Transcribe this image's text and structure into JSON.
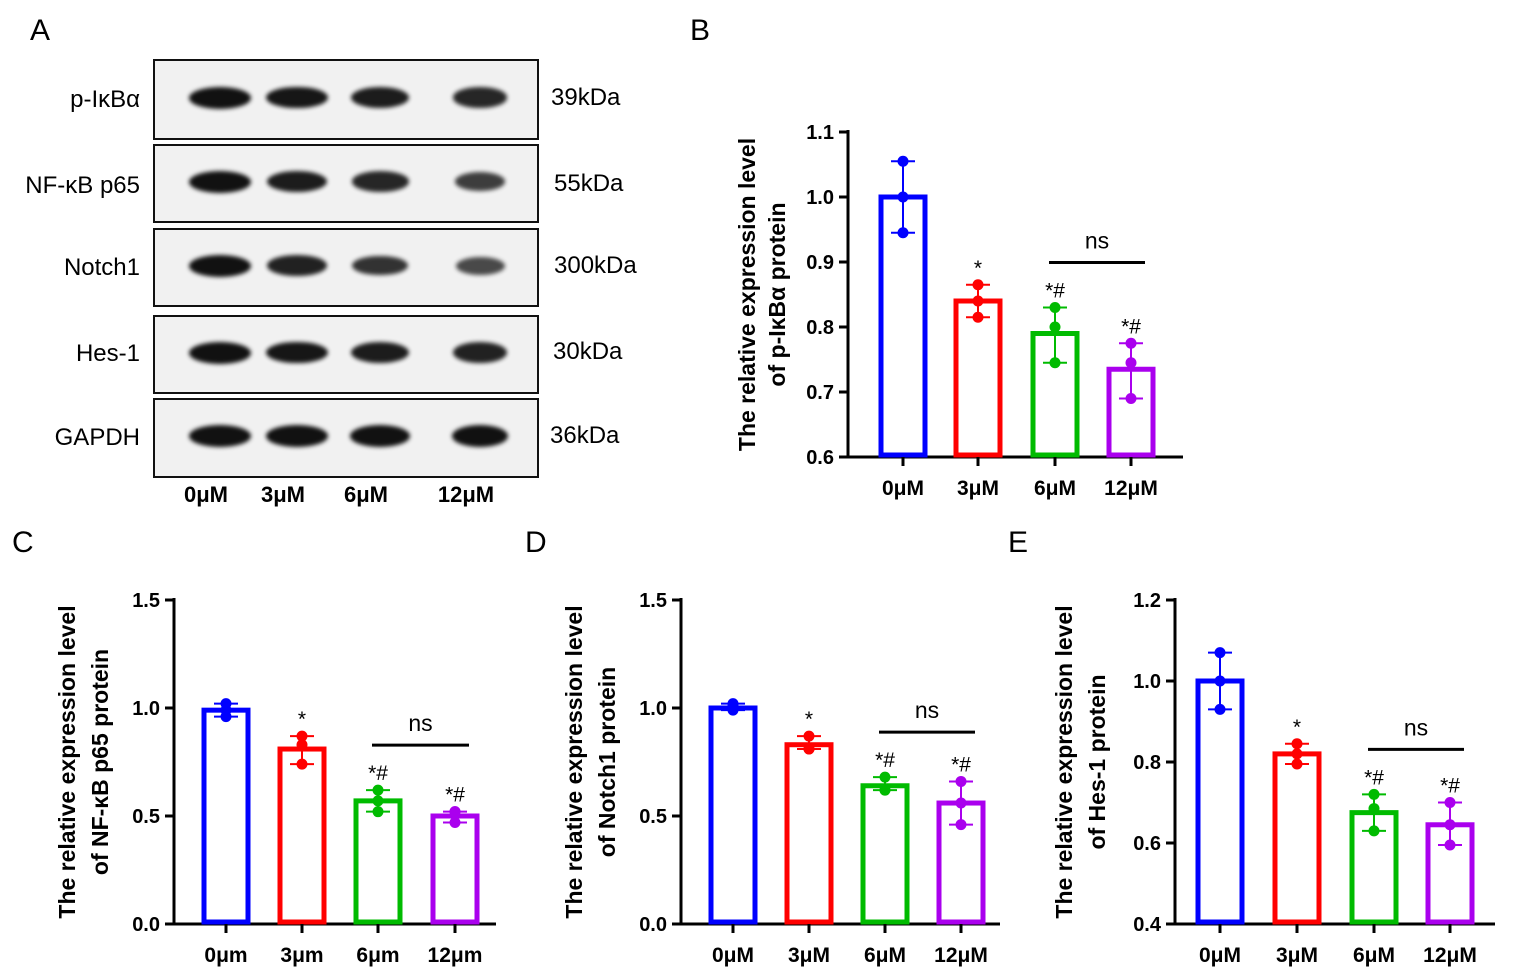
{
  "panels": {
    "a": "A",
    "b": "B",
    "c": "C",
    "d": "D",
    "e": "E"
  },
  "blot": {
    "rows": [
      {
        "protein": "p-IκBα",
        "size": "39kDa",
        "intensity": [
          1,
          0.95,
          0.9,
          0.8
        ]
      },
      {
        "protein": "NF-κB p65",
        "size": "55kDa",
        "intensity": [
          1,
          0.9,
          0.8,
          0.6
        ]
      },
      {
        "protein": "Notch1",
        "size": "300kDa",
        "intensity": [
          1,
          0.85,
          0.7,
          0.5
        ]
      },
      {
        "protein": "Hes-1",
        "size": "30kDa",
        "intensity": [
          1,
          0.95,
          0.9,
          0.85
        ]
      },
      {
        "protein": "GAPDH",
        "size": "36kDa",
        "intensity": [
          1,
          1,
          1,
          1
        ]
      }
    ],
    "lanes": [
      "0μM",
      "3μM",
      "6μM",
      "12μM"
    ]
  },
  "colors": [
    "#0000ff",
    "#ff0000",
    "#00bb00",
    "#aa00ee"
  ],
  "chart_data": [
    {
      "type": "bar",
      "id": "b",
      "ylabel": [
        "The relative expression level",
        "of p-IκBα protein"
      ],
      "categories": [
        "0μM",
        "3μM",
        "6μM",
        "12μM"
      ],
      "ylim": [
        0.6,
        1.1
      ],
      "yticks": [
        "0.6",
        "0.7",
        "0.8",
        "0.9",
        "1.0",
        "1.1"
      ],
      "values": [
        1.0,
        0.84,
        0.79,
        0.735
      ],
      "points": [
        [
          1.055,
          1.0,
          0.945
        ],
        [
          0.865,
          0.84,
          0.815
        ],
        [
          0.83,
          0.8,
          0.745
        ],
        [
          0.775,
          0.745,
          0.69
        ]
      ],
      "sig": [
        "",
        "*",
        "*#",
        "*#"
      ],
      "bracket": "ns"
    },
    {
      "type": "bar",
      "id": "c",
      "ylabel": [
        "The relative expression level",
        "of NF-κB p65 protein"
      ],
      "categories": [
        "0μm",
        "3μm",
        "6μm",
        "12μm"
      ],
      "ylim": [
        0,
        1.5
      ],
      "yticks": [
        "0.0",
        "0.5",
        "1.0",
        "1.5"
      ],
      "values": [
        0.99,
        0.81,
        0.57,
        0.5
      ],
      "points": [
        [
          1.02,
          0.99,
          0.96
        ],
        [
          0.87,
          0.83,
          0.74
        ],
        [
          0.62,
          0.57,
          0.52
        ],
        [
          0.52,
          0.52,
          0.47
        ]
      ],
      "sig": [
        "",
        "*",
        "*#",
        "*#"
      ],
      "bracket": "ns"
    },
    {
      "type": "bar",
      "id": "d",
      "ylabel": [
        "The relative expression level",
        "of Notch1 protein"
      ],
      "categories": [
        "0μM",
        "3μM",
        "6μM",
        "12μM"
      ],
      "ylim": [
        0,
        1.5
      ],
      "yticks": [
        "0.0",
        "0.5",
        "1.0",
        "1.5"
      ],
      "values": [
        1.0,
        0.83,
        0.64,
        0.56
      ],
      "points": [
        [
          0.99,
          1.01,
          1.02
        ],
        [
          0.87,
          0.81,
          0.81
        ],
        [
          0.68,
          0.62,
          0.62
        ],
        [
          0.66,
          0.56,
          0.46
        ]
      ],
      "sig": [
        "",
        "*",
        "*#",
        "*#"
      ],
      "bracket": "ns"
    },
    {
      "type": "bar",
      "id": "e",
      "ylabel": [
        "The relative expression level",
        "of Hes-1 protein"
      ],
      "categories": [
        "0μM",
        "3μM",
        "6μM",
        "12μM"
      ],
      "ylim": [
        0.4,
        1.2
      ],
      "yticks": [
        "0.4",
        "0.6",
        "0.8",
        "1.0",
        "1.2"
      ],
      "values": [
        1.0,
        0.82,
        0.675,
        0.645
      ],
      "points": [
        [
          1.07,
          1.0,
          0.93
        ],
        [
          0.845,
          0.82,
          0.795
        ],
        [
          0.72,
          0.685,
          0.63
        ],
        [
          0.7,
          0.645,
          0.595
        ]
      ],
      "sig": [
        "",
        "*",
        "*#",
        "*#"
      ],
      "bracket": "ns"
    }
  ]
}
